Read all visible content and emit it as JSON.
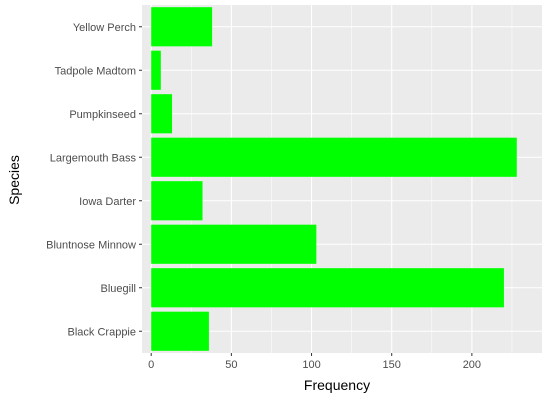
{
  "chart_data": {
    "type": "bar",
    "orientation": "horizontal",
    "title": "",
    "xlabel": "Frequency",
    "ylabel": "Species",
    "categories": [
      "Black Crappie",
      "Bluegill",
      "Bluntnose Minnow",
      "Iowa Darter",
      "Largemouth Bass",
      "Pumpkinseed",
      "Tadpole Madtom",
      "Yellow Perch"
    ],
    "values": [
      36,
      220,
      103,
      32,
      228,
      13,
      6,
      38
    ],
    "xlim": [
      0,
      238
    ],
    "x_ticks": [
      0,
      50,
      100,
      150,
      200
    ],
    "grid": true,
    "bar_color": "#00ff00",
    "panel_color": "#ebebeb",
    "grid_color": "#ffffff"
  }
}
